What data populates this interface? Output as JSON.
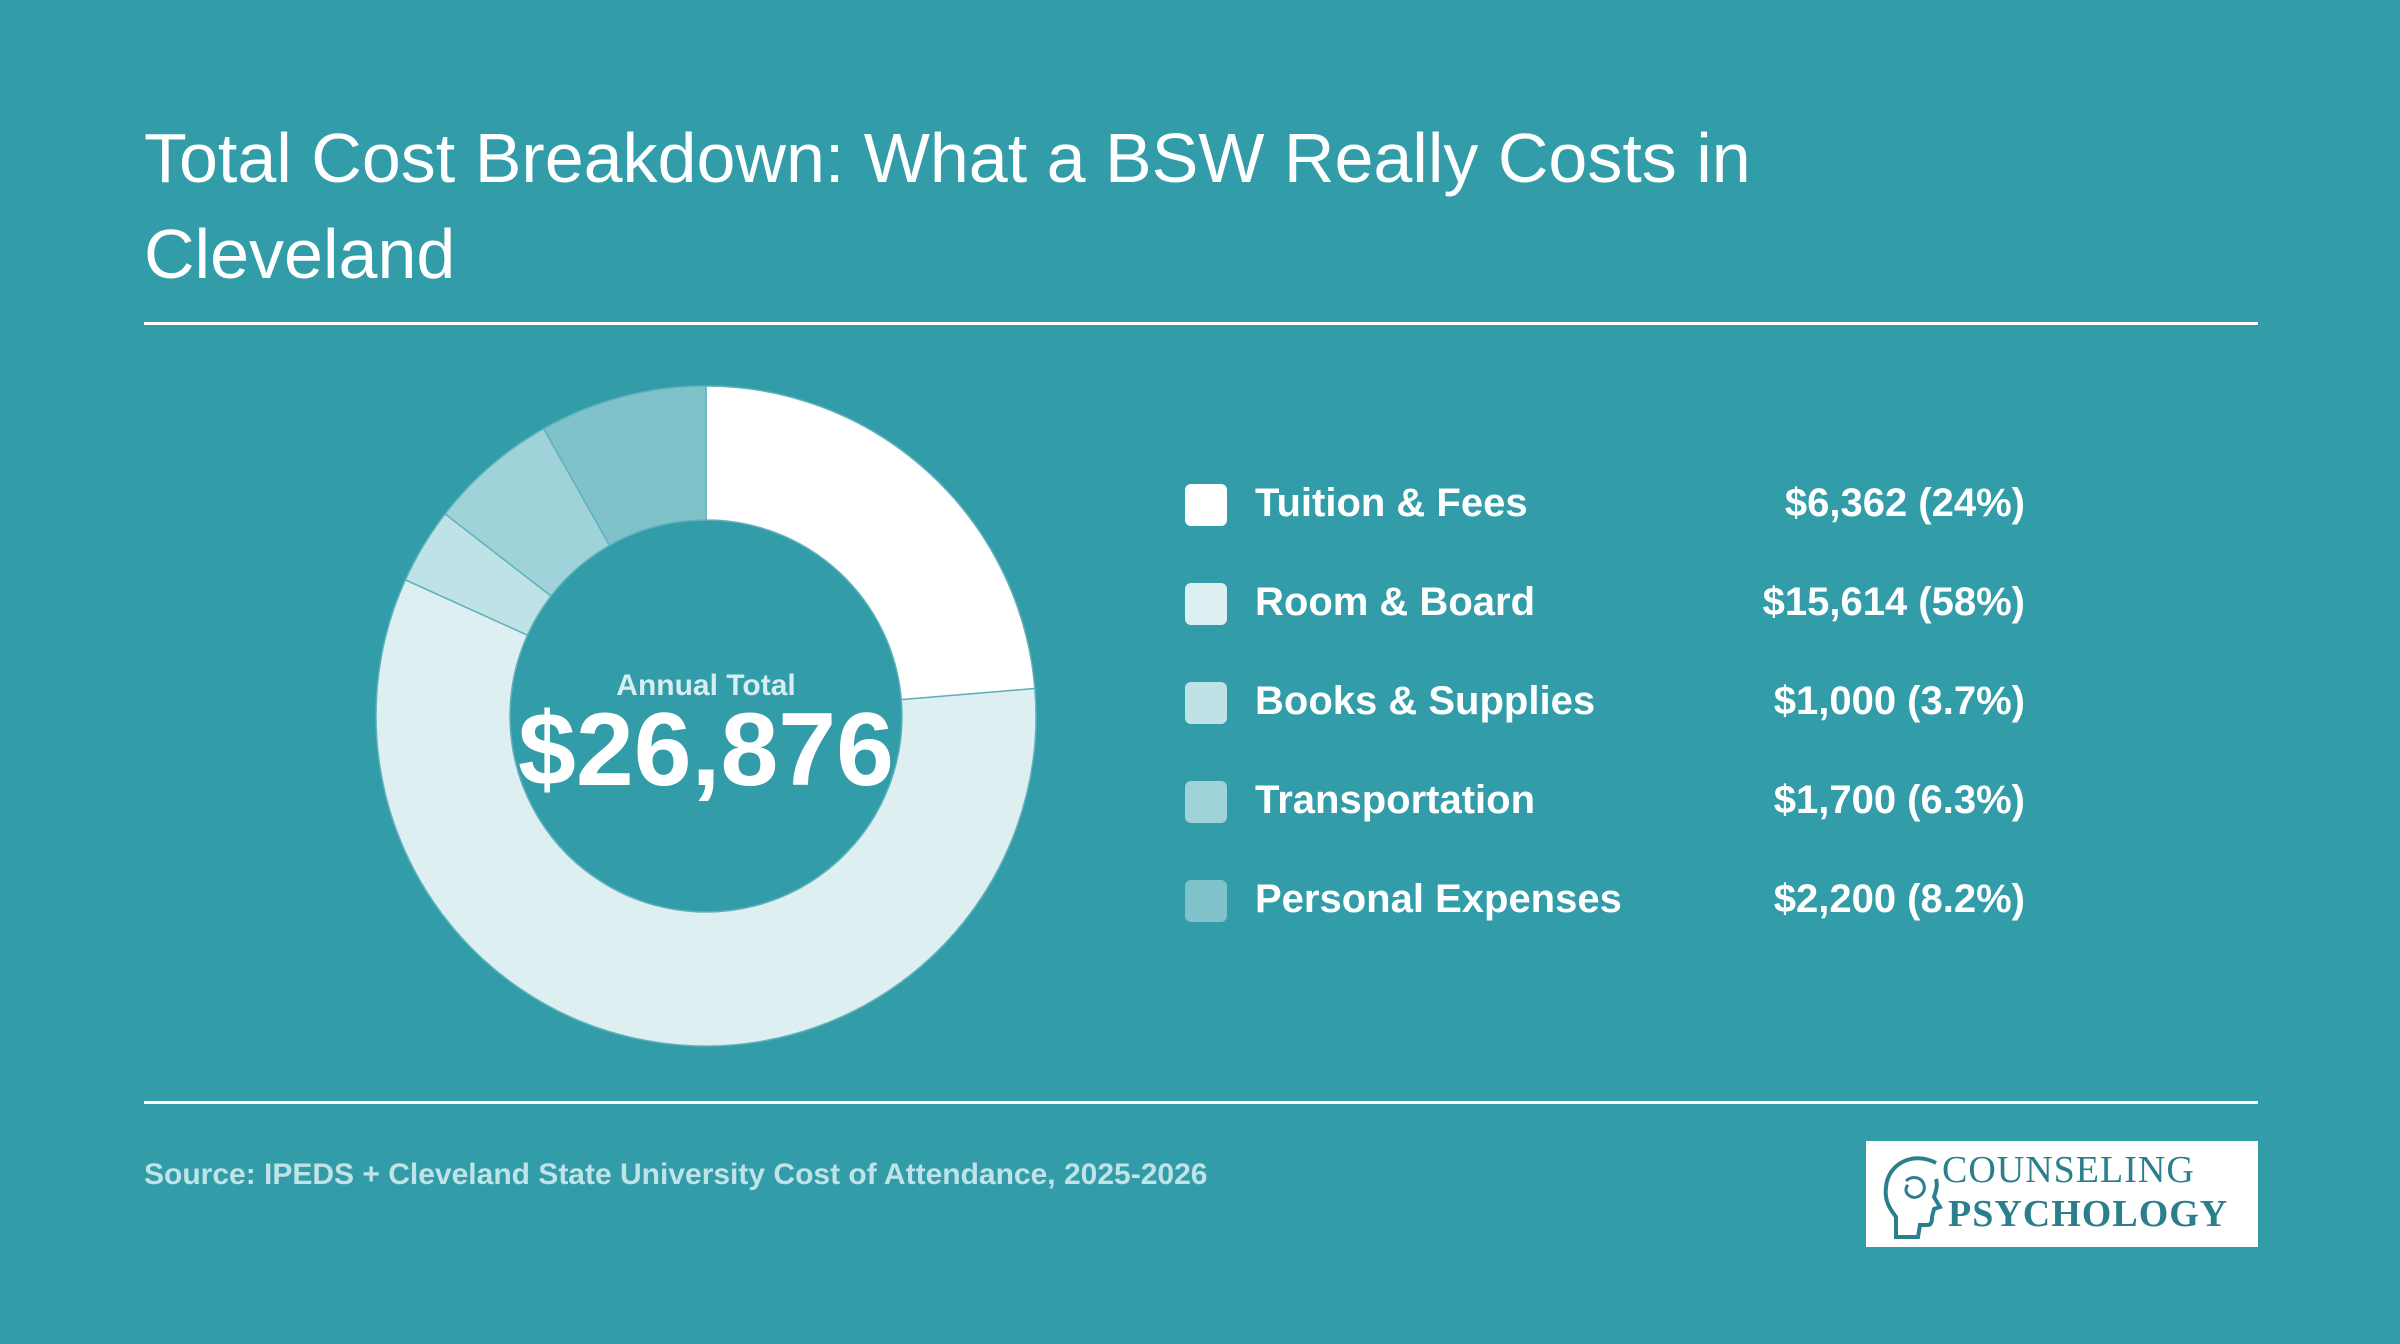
{
  "header": {
    "title": "Total Cost Breakdown: What a BSW Really Costs in Cleveland"
  },
  "chart_data": {
    "type": "pie",
    "title": "Total Cost Breakdown: What a BSW Really Costs in Cleveland",
    "center_caption": "Annual Total",
    "center_value": "$26,876",
    "categories": [
      "Tuition & Fees",
      "Room & Board",
      "Books & Supplies",
      "Transportation",
      "Personal Expenses"
    ],
    "values": [
      6362,
      15614,
      1000,
      1700,
      2200
    ],
    "value_labels": [
      "$6,362 (24%)",
      "$15,614 (58%)",
      "$1,000 (3.7%)",
      "$1,700 (6.3%)",
      "$2,200 (8.2%)"
    ],
    "colors": [
      "#ffffff",
      "#deeff1",
      "#bfe2e6",
      "#a0d3d9",
      "#7fc2ca"
    ],
    "legend_position": "right"
  },
  "footer": {
    "source": "Source: IPEDS + Cleveland State University Cost of Attendance, 2025-2026"
  },
  "logo": {
    "line1": "COUNSELING",
    "line2": "PSYCHOLOGY",
    "icon": "head-profile-icon"
  }
}
